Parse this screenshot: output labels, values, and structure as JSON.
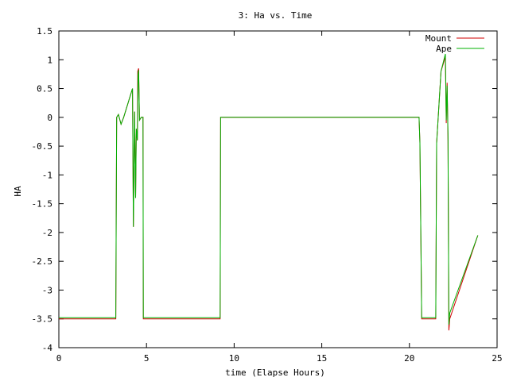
{
  "chart_data": {
    "type": "line",
    "title": "3: Ha vs. Time",
    "xlabel": "time (Elapse Hours)",
    "ylabel": "HA",
    "xlim": [
      0,
      25
    ],
    "ylim": [
      -4,
      1.5
    ],
    "xticks": [
      0,
      5,
      10,
      15,
      20,
      25
    ],
    "yticks": [
      1.5,
      1,
      0.5,
      0,
      -0.5,
      -1,
      -1.5,
      -2,
      -2.5,
      -3,
      -3.5,
      -4
    ],
    "grid": false,
    "legend_position": "top-right",
    "series": [
      {
        "name": "Mount",
        "color": "#d00000",
        "points": [
          [
            0,
            -3.5
          ],
          [
            3.25,
            -3.5
          ],
          [
            3.27,
            -1.8
          ],
          [
            3.3,
            0.0
          ],
          [
            3.4,
            0.05
          ],
          [
            3.55,
            -0.12
          ],
          [
            3.7,
            0.0
          ],
          [
            4.2,
            0.5
          ],
          [
            4.25,
            -1.9
          ],
          [
            4.32,
            0.1
          ],
          [
            4.38,
            -1.4
          ],
          [
            4.42,
            -0.2
          ],
          [
            4.48,
            -0.4
          ],
          [
            4.5,
            0.8
          ],
          [
            4.55,
            0.85
          ],
          [
            4.6,
            -0.05
          ],
          [
            4.7,
            0.0
          ],
          [
            4.8,
            0.0
          ],
          [
            4.82,
            -3.5
          ],
          [
            9.2,
            -3.5
          ],
          [
            9.23,
            0.0
          ],
          [
            20.55,
            0.0
          ],
          [
            20.6,
            -0.45
          ],
          [
            20.7,
            -3.5
          ],
          [
            21.5,
            -3.5
          ],
          [
            21.55,
            -0.45
          ],
          [
            21.8,
            0.8
          ],
          [
            22.05,
            1.05
          ],
          [
            22.1,
            -0.1
          ],
          [
            22.15,
            0.6
          ],
          [
            22.2,
            -0.4
          ],
          [
            22.25,
            -3.7
          ],
          [
            22.3,
            -3.5
          ],
          [
            23.9,
            -2.05
          ]
        ]
      },
      {
        "name": "Ape",
        "color": "#00b000",
        "points": [
          [
            0,
            -3.48
          ],
          [
            3.25,
            -3.48
          ],
          [
            3.27,
            -1.8
          ],
          [
            3.3,
            0.0
          ],
          [
            3.4,
            0.05
          ],
          [
            3.55,
            -0.12
          ],
          [
            3.7,
            0.0
          ],
          [
            4.2,
            0.5
          ],
          [
            4.25,
            -1.9
          ],
          [
            4.32,
            0.1
          ],
          [
            4.38,
            -1.4
          ],
          [
            4.42,
            -0.2
          ],
          [
            4.48,
            -0.4
          ],
          [
            4.52,
            0.75
          ],
          [
            4.55,
            0.82
          ],
          [
            4.6,
            -0.05
          ],
          [
            4.7,
            0.0
          ],
          [
            4.8,
            0.0
          ],
          [
            4.82,
            -3.48
          ],
          [
            9.2,
            -3.48
          ],
          [
            9.23,
            0.0
          ],
          [
            20.55,
            0.0
          ],
          [
            20.6,
            -0.45
          ],
          [
            20.7,
            -3.48
          ],
          [
            21.5,
            -3.48
          ],
          [
            21.55,
            -0.45
          ],
          [
            21.8,
            0.8
          ],
          [
            22.05,
            1.1
          ],
          [
            22.1,
            -0.05
          ],
          [
            22.15,
            0.55
          ],
          [
            22.2,
            -0.3
          ],
          [
            22.25,
            -3.6
          ],
          [
            22.3,
            -3.4
          ],
          [
            23.9,
            -2.05
          ]
        ]
      }
    ]
  }
}
